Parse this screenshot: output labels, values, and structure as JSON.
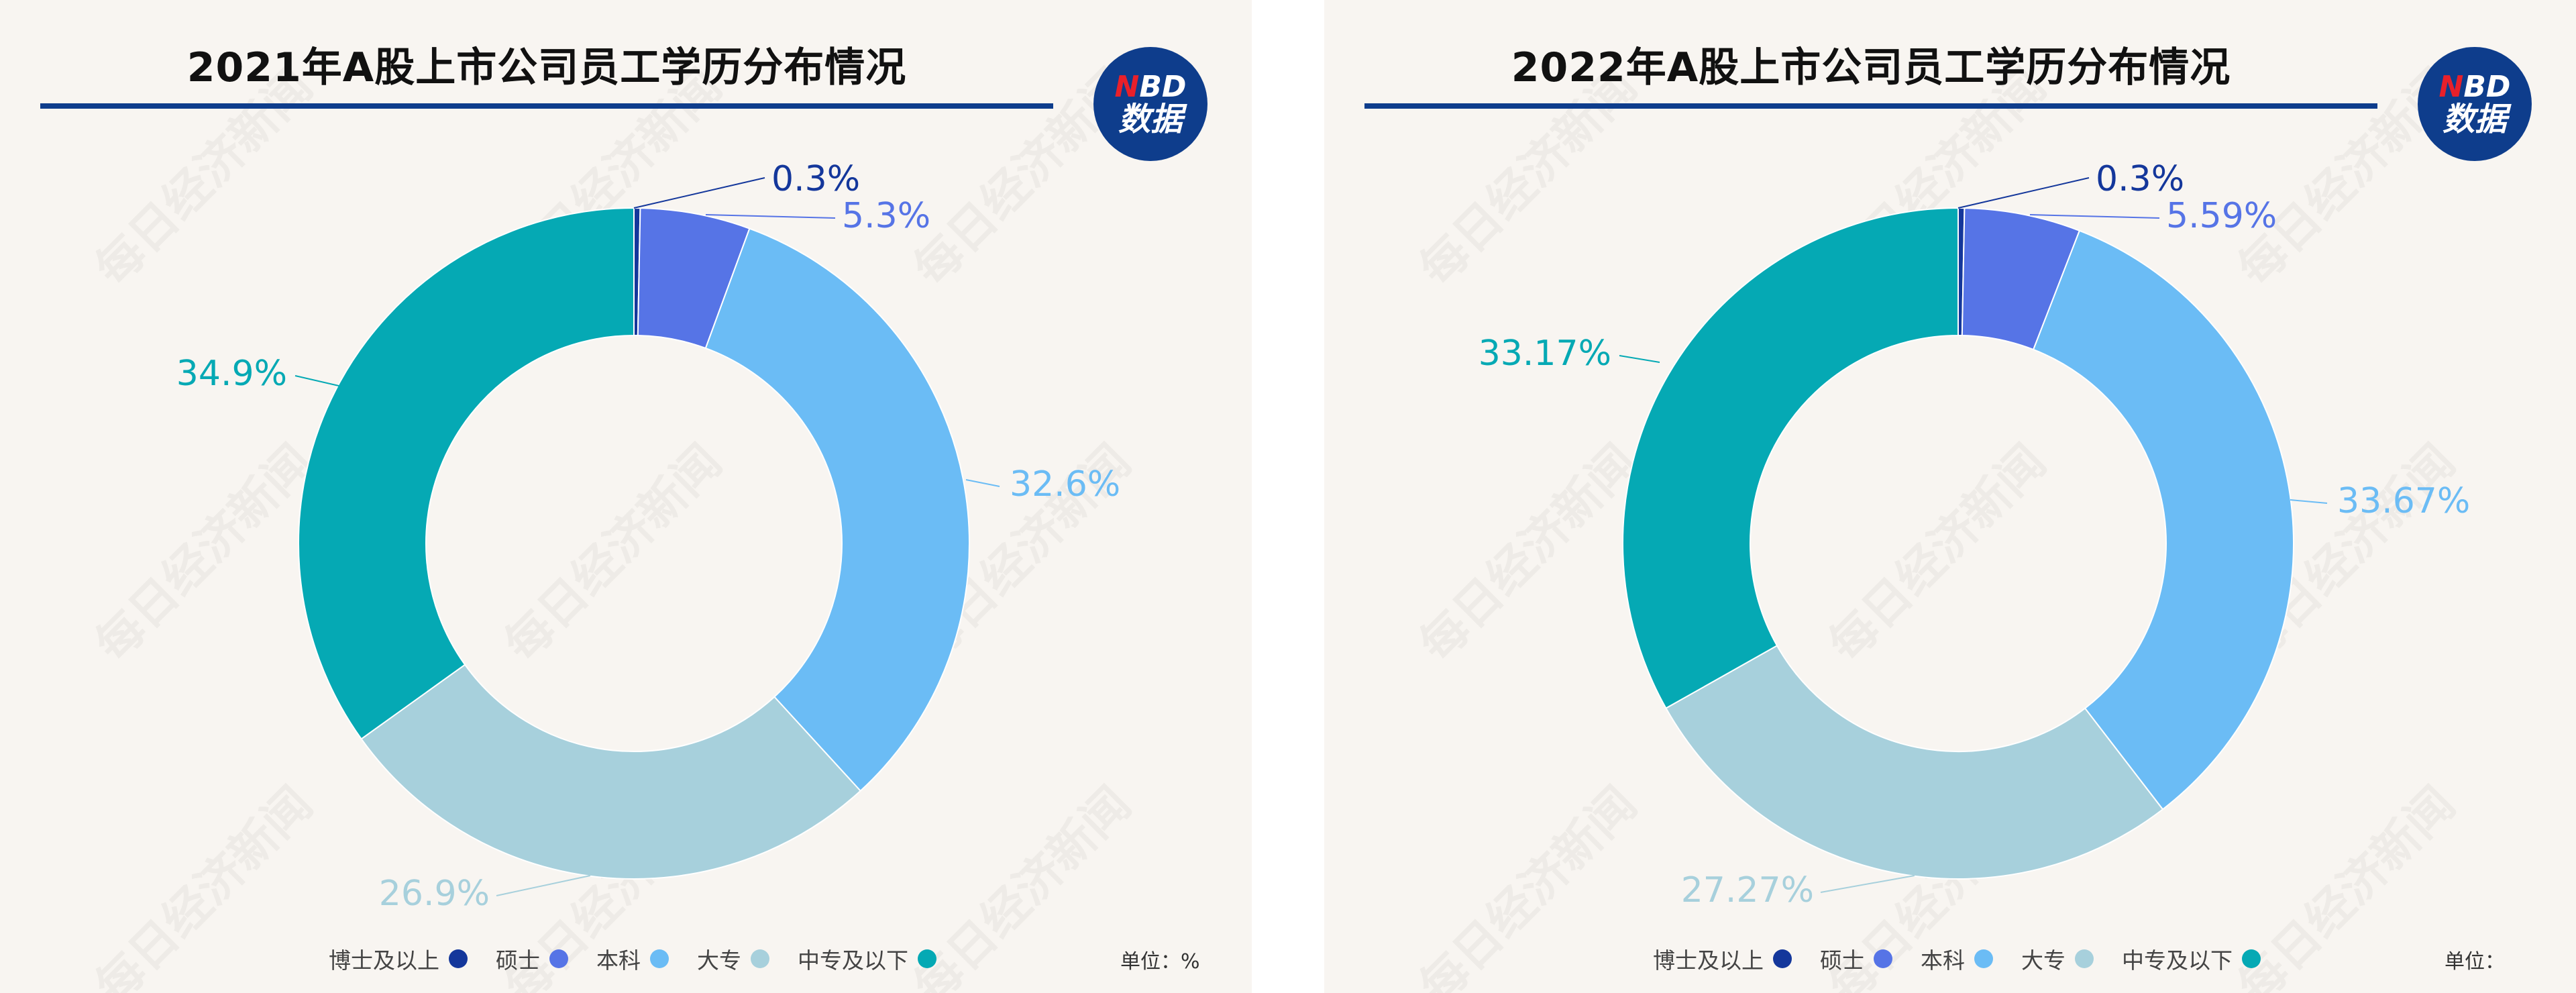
{
  "brand": {
    "line1_n": "N",
    "line1_rest": "BD",
    "line2": "数据"
  },
  "watermark_text": "每日经济新闻",
  "colors": {
    "博士及以上": "#14379b",
    "硕士": "#5674e6",
    "本科": "#6bbcf5",
    "大专": "#a7d0dc",
    "中专及以下": "#05a9b4"
  },
  "chart_data": [
    {
      "type": "pie",
      "donut": true,
      "title": "2021年A股上市公司员工学历分布情况",
      "categories": [
        "博士及以上",
        "硕士",
        "本科",
        "大专",
        "中专及以下"
      ],
      "values": [
        0.3,
        5.3,
        32.6,
        26.9,
        34.9
      ],
      "labels": [
        "0.3%",
        "5.3%",
        "32.6%",
        "26.9%",
        "34.9%"
      ],
      "legend_position": "bottom",
      "unit_label": "单位：%"
    },
    {
      "type": "pie",
      "donut": true,
      "title": "2022年A股上市公司员工学历分布情况",
      "categories": [
        "博士及以上",
        "硕士",
        "本科",
        "大专",
        "中专及以下"
      ],
      "values": [
        0.3,
        5.59,
        33.67,
        27.27,
        33.17
      ],
      "labels": [
        "0.3%",
        "5.59%",
        "33.67%",
        "27.27%",
        "33.17%"
      ],
      "legend_position": "bottom",
      "unit_label": "单位："
    }
  ]
}
